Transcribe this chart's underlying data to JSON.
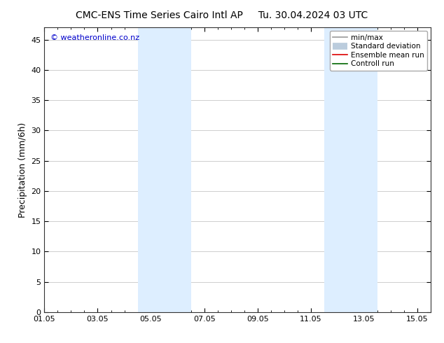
{
  "title_left": "CMC-ENS Time Series Cairo Intl AP",
  "title_right": "Tu. 30.04.2024 03 UTC",
  "ylabel": "Precipitation (mm/6h)",
  "xlabel": "",
  "ylim": [
    0,
    47
  ],
  "yticks": [
    0,
    5,
    10,
    15,
    20,
    25,
    30,
    35,
    40,
    45
  ],
  "xtick_labels": [
    "01.05",
    "03.05",
    "05.05",
    "07.05",
    "09.05",
    "11.05",
    "13.05",
    "15.05"
  ],
  "xtick_positions": [
    0,
    2,
    4,
    6,
    8,
    10,
    12,
    14
  ],
  "xlim": [
    0,
    14
  ],
  "shaded_regions": [
    {
      "x_start": 3.5,
      "x_end": 4.5,
      "color": "#ddeeff"
    },
    {
      "x_start": 4.5,
      "x_end": 5.5,
      "color": "#ddeeff"
    },
    {
      "x_start": 10.5,
      "x_end": 11.5,
      "color": "#ddeeff"
    },
    {
      "x_start": 11.5,
      "x_end": 12.5,
      "color": "#ddeeff"
    }
  ],
  "background_color": "#ffffff",
  "plot_background": "#ffffff",
  "grid_color": "#bbbbbb",
  "watermark_text": "© weatheronline.co.nz",
  "watermark_color": "#0000cc",
  "legend_items": [
    {
      "label": "min/max",
      "color": "#999999",
      "lw": 1.2
    },
    {
      "label": "Standard deviation",
      "color": "#bbccdd",
      "lw": 7
    },
    {
      "label": "Ensemble mean run",
      "color": "#dd0000",
      "lw": 1.2
    },
    {
      "label": "Controll run",
      "color": "#006600",
      "lw": 1.2
    }
  ],
  "title_fontsize": 10,
  "tick_fontsize": 8,
  "ylabel_fontsize": 9,
  "watermark_fontsize": 8,
  "legend_fontsize": 7.5
}
